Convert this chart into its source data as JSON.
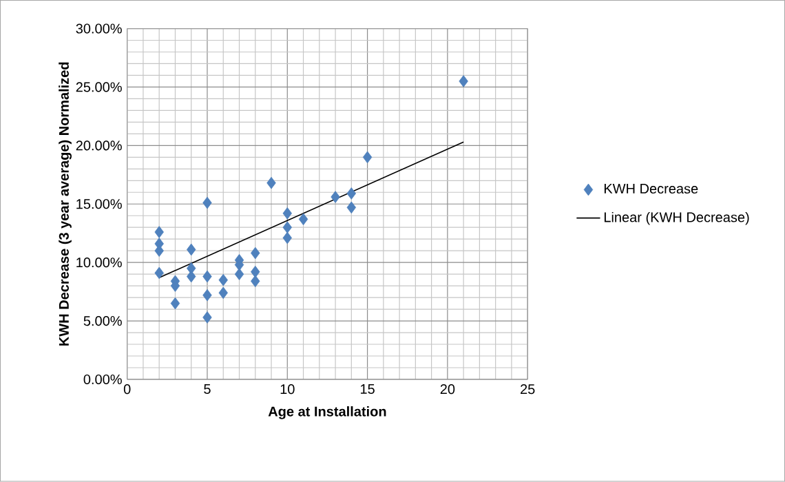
{
  "chart_data": {
    "type": "scatter",
    "xlabel": "Age at Installation",
    "ylabel": "KWH Decrease (3 year average) Normalized",
    "xlim": [
      0,
      25
    ],
    "xticks": [
      0,
      5,
      10,
      15,
      20,
      25
    ],
    "ylim": [
      0,
      30
    ],
    "yticks": [
      {
        "value": 0,
        "label": "0.00%"
      },
      {
        "value": 5,
        "label": "5.00%"
      },
      {
        "value": 10,
        "label": "10.00%"
      },
      {
        "value": 15,
        "label": "15.00%"
      },
      {
        "value": 20,
        "label": "20.00%"
      },
      {
        "value": 25,
        "label": "25.00%"
      },
      {
        "value": 30,
        "label": "30.00%"
      }
    ],
    "grid": true,
    "legend": "right",
    "marker": "diamond",
    "series": [
      {
        "name": "KWH Decrease",
        "color": "#4f81bd",
        "x": [
          2,
          2,
          2,
          2,
          3,
          3,
          3,
          4,
          4,
          4,
          5,
          5,
          5,
          5,
          6,
          6,
          7,
          7,
          7,
          8,
          8,
          8,
          9,
          10,
          10,
          10,
          11,
          13,
          14,
          14,
          15,
          21
        ],
        "values": [
          12.6,
          11.6,
          11.0,
          9.1,
          8.4,
          8.0,
          6.5,
          11.1,
          9.5,
          8.8,
          15.1,
          8.8,
          7.2,
          5.3,
          8.5,
          7.4,
          10.2,
          9.8,
          9.0,
          10.8,
          9.2,
          8.4,
          16.8,
          14.2,
          13.0,
          12.1,
          13.7,
          15.6,
          15.9,
          14.7,
          19.0,
          25.5
        ]
      },
      {
        "name": "Linear (KWH Decrease)",
        "type": "line",
        "color": "#000000",
        "marker": "none",
        "line_style": "solid",
        "x": [
          2,
          21
        ],
        "values": [
          8.7,
          20.3
        ]
      }
    ]
  }
}
